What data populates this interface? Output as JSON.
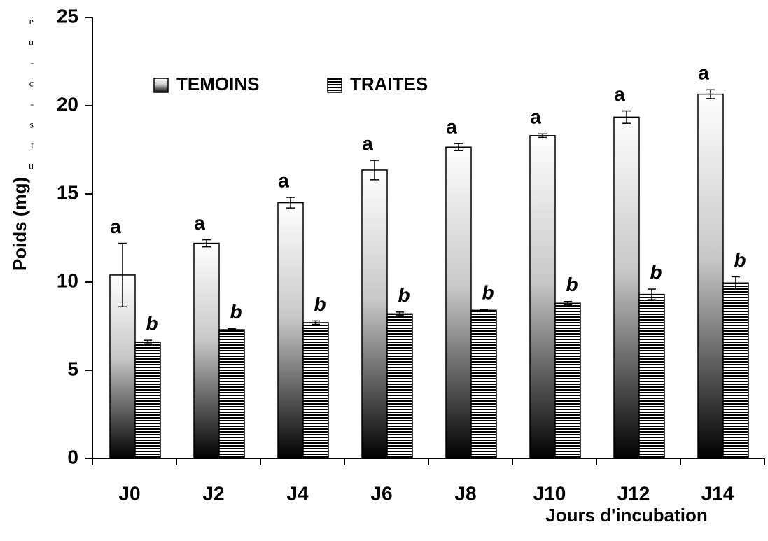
{
  "side_text": [
    "e",
    "u",
    "-",
    "c",
    "-",
    "s",
    "t",
    "u"
  ],
  "chart_data": {
    "type": "bar",
    "ylabel": "Poids (mg)",
    "xlabel": "Jours d'incubation",
    "categories": [
      "J0",
      "J2",
      "J4",
      "J6",
      "J8",
      "J10",
      "J12",
      "J14"
    ],
    "series": [
      {
        "name": "TEMOINS",
        "color": "#000000",
        "pattern": "gradient",
        "values": [
          10.4,
          12.2,
          14.5,
          16.35,
          17.65,
          18.3,
          19.35,
          20.65
        ],
        "errors": [
          1.8,
          0.2,
          0.3,
          0.55,
          0.2,
          0.1,
          0.35,
          0.25
        ],
        "letters": [
          "a",
          "a",
          "a",
          "a",
          "a",
          "a",
          "a",
          "a"
        ]
      },
      {
        "name": "TRAITES",
        "color": "#000000",
        "pattern": "stripes",
        "values": [
          6.6,
          7.3,
          7.7,
          8.2,
          8.4,
          8.8,
          9.3,
          9.95
        ],
        "errors": [
          0.1,
          0.05,
          0.1,
          0.1,
          0.05,
          0.1,
          0.3,
          0.35
        ],
        "letters": [
          "b",
          "b",
          "b",
          "b",
          "b",
          "b",
          "b",
          "b"
        ]
      }
    ],
    "ylim": [
      0,
      25
    ],
    "yticks": [
      0,
      5,
      10,
      15,
      20,
      25
    ],
    "grid": false,
    "legend": "top-left"
  }
}
